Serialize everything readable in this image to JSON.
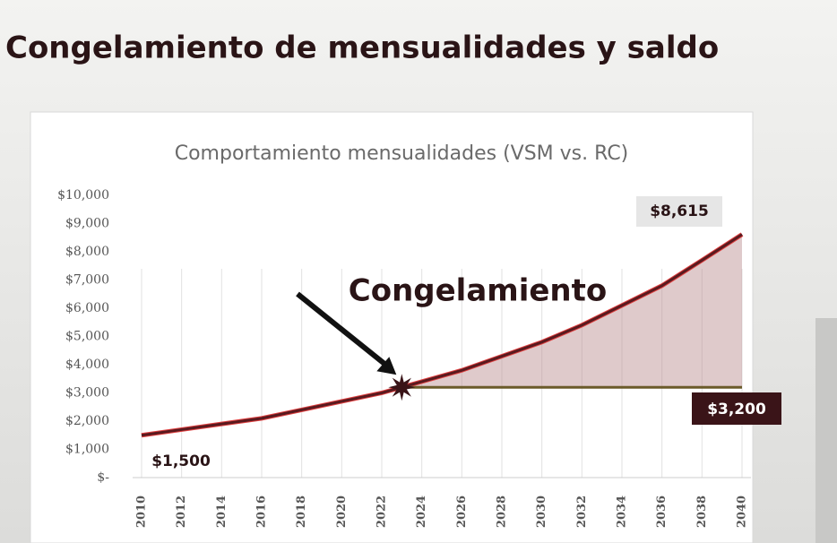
{
  "page_title": "Congelamiento de mensualidades y saldo",
  "chart_data": {
    "type": "line",
    "title": "Comportamiento mensualidades (VSM vs. RC)",
    "series": [
      {
        "color": "#5a1a1f",
        "x": [
          2010,
          2012,
          2014,
          2016,
          2018,
          2020,
          2022,
          2024,
          2026,
          2028,
          2030,
          2032,
          2034,
          2036,
          2038,
          2040
        ],
        "values": [
          1500,
          1700,
          1900,
          2100,
          2400,
          2700,
          3000,
          3400,
          3800,
          4300,
          4800,
          5400,
          6100,
          6800,
          7700,
          8615
        ],
        "value_labels": [
          "$1,500",
          null,
          null,
          null,
          null,
          null,
          null,
          null,
          null,
          null,
          null,
          null,
          null,
          null,
          null,
          "$8,615"
        ]
      },
      {
        "color": "#6b5a2a",
        "x": [
          2023,
          2040
        ],
        "values": [
          3200,
          3200
        ],
        "value_labels": [
          null,
          "$3,200"
        ]
      }
    ],
    "annotation": {
      "text": "Congelamiento",
      "x": 2023,
      "y": 3200
    },
    "xlim": [
      2010,
      2040
    ],
    "xticks": [
      2010,
      2012,
      2014,
      2016,
      2018,
      2020,
      2022,
      2024,
      2026,
      2028,
      2030,
      2032,
      2034,
      2036,
      2038,
      2040
    ],
    "ylim": [
      0,
      10000
    ],
    "yticks": [
      {
        "value": 0,
        "label": "$-"
      },
      {
        "value": 1000,
        "label": "$1,000"
      },
      {
        "value": 2000,
        "label": "$2,000"
      },
      {
        "value": 3000,
        "label": "$3,000"
      },
      {
        "value": 4000,
        "label": "$4,000"
      },
      {
        "value": 5000,
        "label": "$5,000"
      },
      {
        "value": 6000,
        "label": "$6,000"
      },
      {
        "value": 7000,
        "label": "$7,000"
      },
      {
        "value": 8000,
        "label": "$8,000"
      },
      {
        "value": 9000,
        "label": "$9,000"
      },
      {
        "value": 10000,
        "label": "$10,000"
      }
    ],
    "grid": true
  }
}
